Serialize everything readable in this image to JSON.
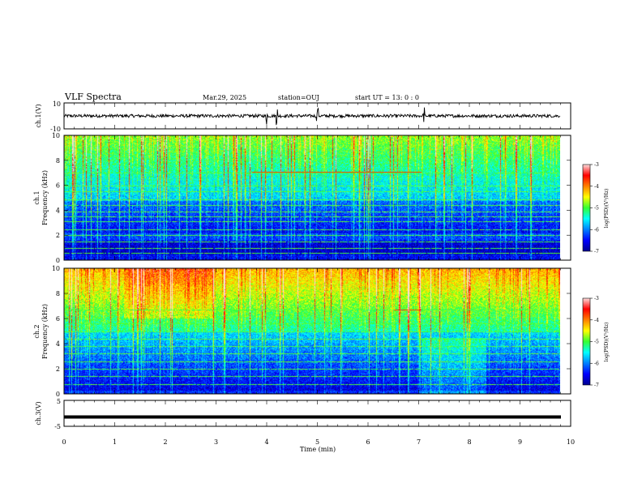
{
  "header": {
    "title": "VLF Spectra",
    "date": "Mar.29, 2025",
    "station": "station=OUJ",
    "start": "start  UT  =   13: 0  : 0"
  },
  "chart_data": [
    {
      "type": "line",
      "panel": "ch1-waveform",
      "ylabel": "ch.1(V)",
      "ylim": [
        -10,
        10
      ],
      "yticks": [
        "10",
        "-10"
      ],
      "xlim": [
        0,
        10
      ],
      "series": [
        {
          "baseline": 0,
          "noise_amplitude": 1.2,
          "spikes_at_min": [
            4.0,
            4.2,
            5.0,
            7.1
          ]
        }
      ]
    },
    {
      "type": "heatmap",
      "panel": "ch1-spectrogram",
      "ylabel_line1": "ch.1",
      "ylabel_line2": "Frequency (kHz)",
      "ylim": [
        0,
        10
      ],
      "yticks": [
        "0",
        "2",
        "4",
        "6",
        "8",
        "10"
      ],
      "xlim": [
        0,
        10
      ],
      "colorbar": {
        "label": "log(PSD)(V²/Hz)",
        "range": [
          -7,
          -3
        ],
        "ticks": [
          "-3",
          "-4",
          "-5",
          "-6",
          "-7"
        ]
      },
      "dark_bands_khz": [
        [
          2.2,
          4.8
        ],
        [
          0.5,
          1.6
        ]
      ],
      "horizontal_lines_khz": [
        0.6,
        1.0,
        1.5,
        2.0,
        2.5,
        3.1,
        3.5,
        3.9,
        4.4,
        4.9,
        5.5,
        6.0,
        7.0
      ],
      "strong_tone_khz": 7.1,
      "strong_tone_start_min": 3.7
    },
    {
      "type": "heatmap",
      "panel": "ch2-spectrogram",
      "ylabel_line1": "ch.2",
      "ylabel_line2": "Frequency (kHz)",
      "ylim": [
        0,
        10
      ],
      "yticks": [
        "0",
        "2",
        "4",
        "6",
        "8",
        "10"
      ],
      "xlim": [
        0,
        10
      ],
      "colorbar": {
        "label": "log(PSD)(V²/Hz)",
        "range": [
          -7,
          -3
        ],
        "ticks": [
          "-3",
          "-4",
          "-5",
          "-6",
          "-7"
        ]
      },
      "dark_bands_khz": [
        [
          0.3,
          5.0
        ]
      ],
      "horizontal_lines_khz": [
        0.8,
        1.4,
        2.0,
        2.6,
        3.2,
        3.8,
        4.4,
        5.0,
        5.6,
        6.7
      ],
      "strong_tone_khz": 6.7,
      "strong_tone_start_min": 6.5
    },
    {
      "type": "line",
      "panel": "ch3-waveform",
      "ylabel": "ch.3(V)",
      "ylim": [
        -5,
        5
      ],
      "yticks": [
        "5",
        "-5"
      ],
      "xlim": [
        0,
        10
      ],
      "series": [
        {
          "baseline": -1.4
        }
      ]
    }
  ],
  "xaxis": {
    "label": "Time (min)",
    "ticks": [
      "0",
      "1",
      "2",
      "3",
      "4",
      "5",
      "6",
      "7",
      "8",
      "9",
      "10"
    ]
  }
}
